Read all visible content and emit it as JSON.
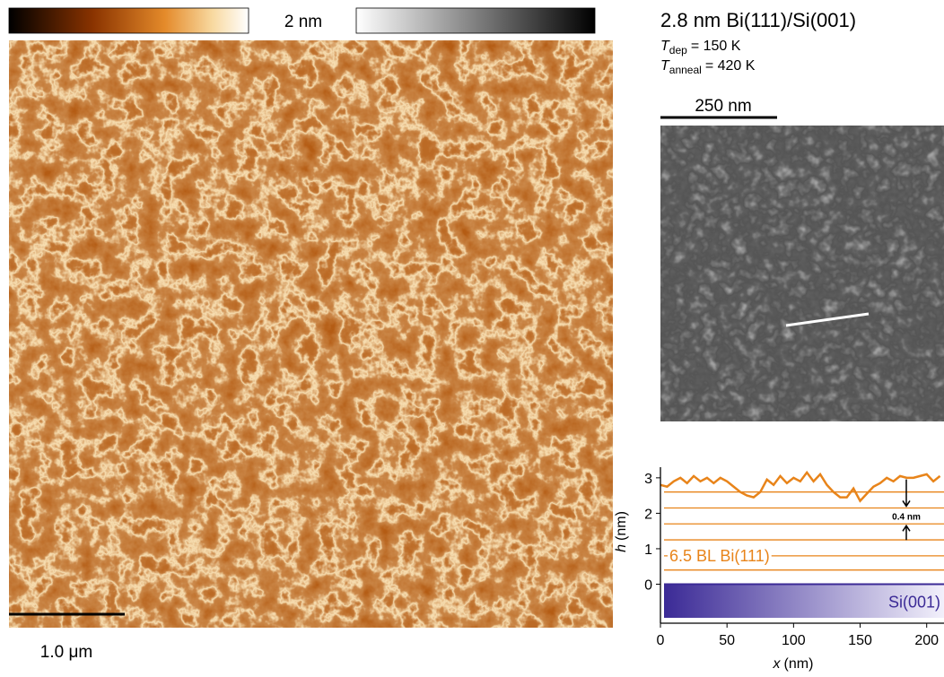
{
  "colorbar_label": "2 nm",
  "scale_bar_large": "1.0 μm",
  "sample": {
    "title": "2.8 nm Bi(111)/Si(001)",
    "dep": {
      "symbol": "T",
      "subscript": "dep",
      "value": "= 150 K"
    },
    "anneal": {
      "symbol": "T",
      "subscript": "anneal",
      "value": "= 420 K"
    }
  },
  "scale_bar_small": "250 nm",
  "chart_data": {
    "type": "line",
    "x_label": {
      "symbol": "x",
      "unit": "(nm)"
    },
    "y_label": {
      "symbol": "h",
      "unit": "(nm)"
    },
    "x": [
      0,
      5,
      10,
      15,
      20,
      25,
      30,
      35,
      40,
      45,
      50,
      55,
      60,
      65,
      70,
      75,
      80,
      85,
      90,
      95,
      100,
      105,
      110,
      115,
      120,
      125,
      130,
      135,
      140,
      145,
      150,
      155,
      160,
      165,
      170,
      175,
      180,
      185,
      190,
      195,
      200,
      205,
      210
    ],
    "series": [
      {
        "color": "#e8841a",
        "values": [
          2.8,
          2.75,
          2.9,
          3.0,
          2.85,
          3.05,
          2.9,
          3.0,
          2.85,
          3.0,
          2.9,
          2.75,
          2.6,
          2.5,
          2.45,
          2.6,
          2.95,
          2.8,
          3.05,
          2.85,
          3.0,
          2.9,
          3.15,
          2.9,
          3.1,
          2.8,
          2.6,
          2.45,
          2.45,
          2.7,
          2.35,
          2.55,
          2.75,
          2.85,
          3.0,
          2.9,
          3.05,
          3.0,
          3.0,
          3.05,
          3.1,
          2.9,
          3.05
        ]
      }
    ],
    "layer_heights": [
      0.4,
      0.8,
      1.25,
      1.7,
      2.15,
      2.6
    ],
    "layer_label": "6.5 BL Bi(111)",
    "step_label": "0.4 nm",
    "substrate_label": "Si(001)",
    "xlim": [
      0,
      213
    ],
    "ylim": [
      -1.1,
      3.3
    ],
    "xticks": [
      0,
      50,
      100,
      150,
      200
    ],
    "yticks": [
      0,
      1,
      2,
      3
    ]
  }
}
